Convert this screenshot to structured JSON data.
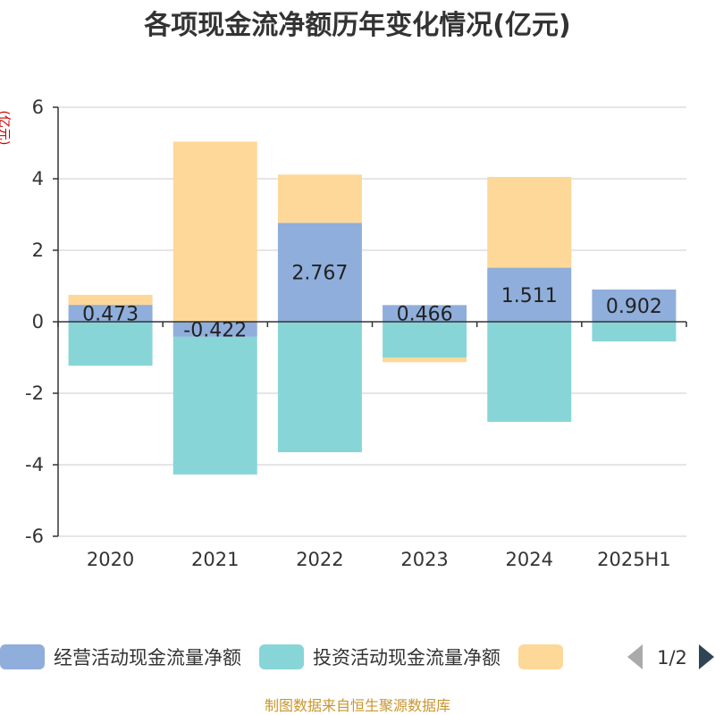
{
  "chart_data": {
    "type": "bar",
    "stacked": true,
    "title": "各项现金流净额历年变化情况(亿元)",
    "ylabel": "(亿元)",
    "xlabel": "",
    "categories": [
      "2020",
      "2021",
      "2022",
      "2023",
      "2024",
      "2025H1"
    ],
    "ylim": [
      -6,
      6
    ],
    "yticks": [
      6,
      4,
      2,
      0,
      -2,
      -4,
      -6
    ],
    "grid": true,
    "series": [
      {
        "name": "经营活动现金流量净额",
        "color": "#8FAEDB",
        "values": [
          0.473,
          -0.422,
          2.767,
          0.466,
          1.511,
          0.902
        ],
        "labels": [
          "0.473",
          "-0.422",
          "2.767",
          "0.466",
          "1.511",
          "0.902"
        ]
      },
      {
        "name": "投资活动现金流量净额",
        "color": "#88D5D8",
        "values": [
          -1.23,
          -3.85,
          -3.65,
          -1.0,
          -2.8,
          -0.55
        ]
      },
      {
        "name": "",
        "color": "#FED898",
        "values": [
          0.28,
          5.04,
          1.35,
          -0.13,
          2.54,
          0.0
        ]
      }
    ],
    "legend": {
      "position": "bottom",
      "page": "1/2"
    },
    "source": "制图数据来自恒生聚源数据库"
  },
  "colors": {
    "title": "#333333",
    "ylabel": "#CC0000",
    "source": "#C8962E",
    "axis": "#333333",
    "grid": "#CCCCCC",
    "pager_prev": "#AAAAAA",
    "pager_next": "#2F4554"
  },
  "icons": {
    "pager_prev": "triangle-left-icon",
    "pager_next": "triangle-right-icon"
  }
}
